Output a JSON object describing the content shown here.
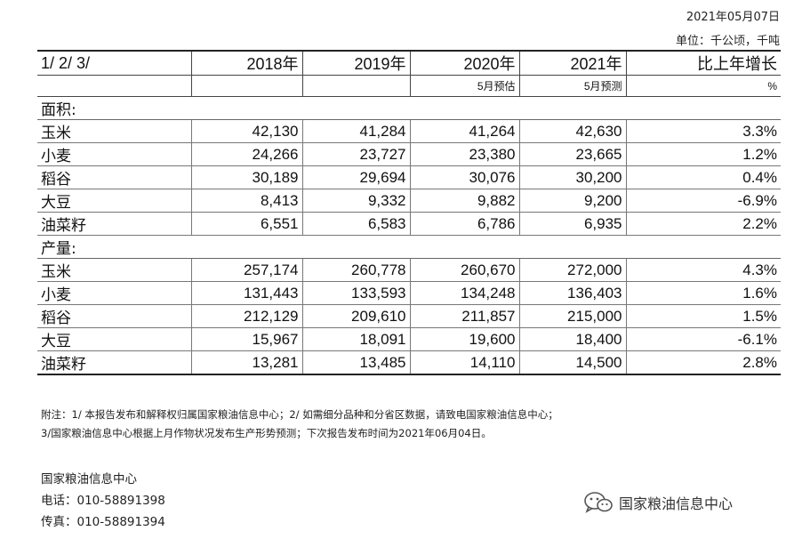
{
  "header": {
    "date": "2021年05月07日",
    "unit": "单位：千公顷，千吨"
  },
  "table": {
    "col_headers": [
      "1/ 2/ 3/",
      "2018年",
      "2019年",
      "2020年",
      "2021年",
      "比上年增长"
    ],
    "sub_headers": [
      "",
      "",
      "",
      "5月预估",
      "5月预测",
      "%"
    ],
    "sections": [
      {
        "label": "面积:",
        "rows": [
          {
            "crop": "玉米",
            "v2018": "42,130",
            "v2019": "41,284",
            "v2020": "41,264",
            "v2021": "42,630",
            "growth": "3.3%"
          },
          {
            "crop": "小麦",
            "v2018": "24,266",
            "v2019": "23,727",
            "v2020": "23,380",
            "v2021": "23,665",
            "growth": "1.2%"
          },
          {
            "crop": "稻谷",
            "v2018": "30,189",
            "v2019": "29,694",
            "v2020": "30,076",
            "v2021": "30,200",
            "growth": "0.4%"
          },
          {
            "crop": "大豆",
            "v2018": "8,413",
            "v2019": "9,332",
            "v2020": "9,882",
            "v2021": "9,200",
            "growth": "-6.9%"
          },
          {
            "crop": "油菜籽",
            "v2018": "6,551",
            "v2019": "6,583",
            "v2020": "6,786",
            "v2021": "6,935",
            "growth": "2.2%"
          }
        ]
      },
      {
        "label": "产量:",
        "rows": [
          {
            "crop": "玉米",
            "v2018": "257,174",
            "v2019": "260,778",
            "v2020": "260,670",
            "v2021": "272,000",
            "growth": "4.3%"
          },
          {
            "crop": "小麦",
            "v2018": "131,443",
            "v2019": "133,593",
            "v2020": "134,248",
            "v2021": "136,403",
            "growth": "1.6%"
          },
          {
            "crop": "稻谷",
            "v2018": "212,129",
            "v2019": "209,610",
            "v2020": "211,857",
            "v2021": "215,000",
            "growth": "1.5%"
          },
          {
            "crop": "大豆",
            "v2018": "15,967",
            "v2019": "18,091",
            "v2020": "19,600",
            "v2021": "18,400",
            "growth": "-6.1%"
          },
          {
            "crop": "油菜籽",
            "v2018": "13,281",
            "v2019": "13,485",
            "v2020": "14,110",
            "v2021": "14,500",
            "growth": "2.8%"
          }
        ]
      }
    ]
  },
  "notes": {
    "line1": "附注：1/ 本报告发布和解释权归属国家粮油信息中心；2/ 如需细分品种和分省区数据，请致电国家粮油信息中心；",
    "line2": "3/国家粮油信息中心根据上月作物状况发布生产形势预测；下次报告发布时间为2021年06月04日。"
  },
  "contact": {
    "org": "国家粮油信息中心",
    "phone": "电话：010-58891398",
    "fax": "传真：010-58891394"
  },
  "watermark": {
    "text": "国家粮油信息中心",
    "icon": "wechat-icon"
  }
}
